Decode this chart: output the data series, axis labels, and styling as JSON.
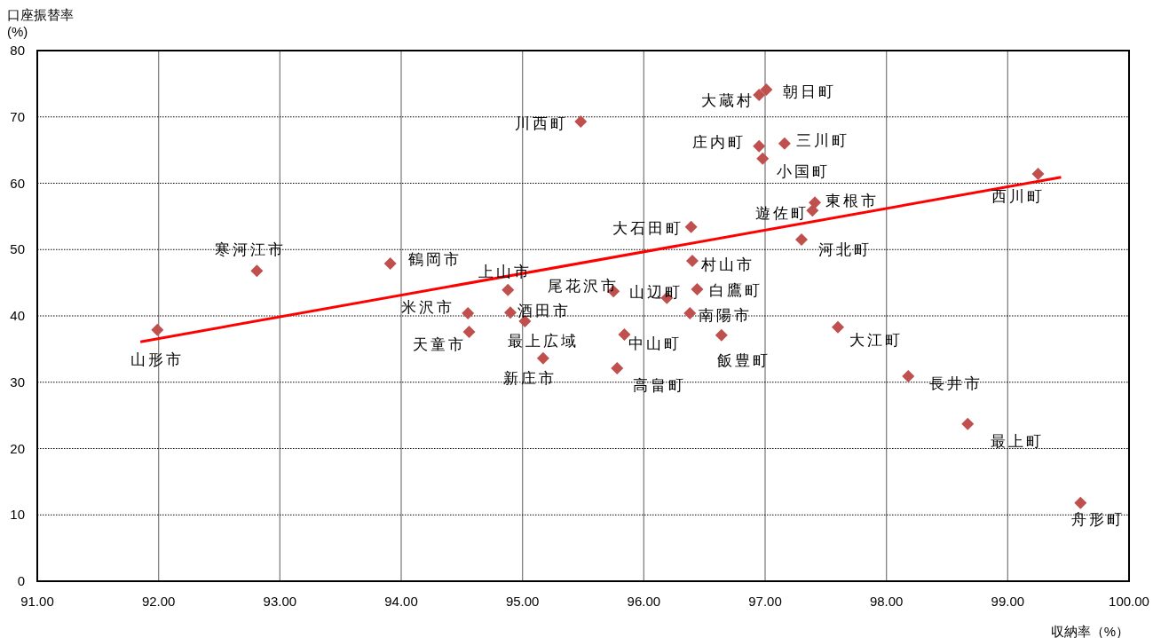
{
  "chart_data": {
    "type": "scatter",
    "xlabel": "収納率（%）",
    "ylabel": "口座振替率\n(%)",
    "xlim": [
      91,
      100
    ],
    "xticks": [
      {
        "value": 91,
        "label": "91.00"
      },
      {
        "value": 92,
        "label": "92.00"
      },
      {
        "value": 93,
        "label": "93.00"
      },
      {
        "value": 94,
        "label": "94.00"
      },
      {
        "value": 95,
        "label": "95.00"
      },
      {
        "value": 96,
        "label": "96.00"
      },
      {
        "value": 97,
        "label": "97.00"
      },
      {
        "value": 98,
        "label": "98.00"
      },
      {
        "value": 99,
        "label": "99.00"
      },
      {
        "value": 100,
        "label": "100.00"
      }
    ],
    "ylim": [
      0,
      80
    ],
    "yticks": [
      0,
      10,
      20,
      30,
      40,
      50,
      60,
      70,
      80
    ],
    "grid": true,
    "series": [
      {
        "color": "#c0504d",
        "marker": "diamond",
        "x": [
          91.99,
          92.81,
          93.91,
          94.88,
          94.55,
          94.56,
          94.9,
          95.02,
          95.17,
          95.75,
          96.19,
          95.48,
          96.39,
          96.4,
          96.44,
          96.38,
          95.84,
          95.78,
          96.64,
          96.95,
          97.01,
          96.95,
          97.16,
          96.98,
          97.41,
          97.39,
          97.3,
          99.25,
          97.6,
          98.18,
          98.67,
          99.6
        ],
        "values": [
          37.9,
          46.8,
          47.9,
          43.9,
          40.4,
          37.6,
          40.5,
          39.2,
          33.6,
          43.7,
          42.7,
          69.3,
          53.4,
          48.3,
          44.0,
          40.4,
          37.2,
          32.1,
          37.1,
          73.3,
          74.1,
          65.6,
          66.0,
          63.7,
          57.1,
          55.9,
          51.5,
          61.4,
          38.3,
          30.9,
          23.7,
          11.8
        ]
      },
      {
        "type": "line",
        "color": "#ff0000",
        "line_style": "solid",
        "x": [
          91.85,
          99.44
        ],
        "values": [
          36.1,
          60.9
        ]
      }
    ],
    "annotations": [
      {
        "text": "山形市",
        "x": 91.99,
        "y": 37.9
      },
      {
        "text": "寒河江市",
        "x": 92.81,
        "y": 46.8
      },
      {
        "text": "鶴岡市",
        "x": 93.91,
        "y": 47.9
      },
      {
        "text": "上山市",
        "x": 94.88,
        "y": 43.9
      },
      {
        "text": "米沢市",
        "x": 94.55,
        "y": 40.4
      },
      {
        "text": "天童市",
        "x": 94.56,
        "y": 37.6
      },
      {
        "text": "酒田市",
        "x": 94.9,
        "y": 40.5
      },
      {
        "text": "最上広域",
        "x": 95.02,
        "y": 39.2
      },
      {
        "text": "新庄市",
        "x": 95.17,
        "y": 33.6
      },
      {
        "text": "尾花沢市",
        "x": 95.75,
        "y": 43.7
      },
      {
        "text": "山辺町",
        "x": 96.19,
        "y": 42.7
      },
      {
        "text": "川西町",
        "x": 95.48,
        "y": 69.3
      },
      {
        "text": "大石田町",
        "x": 96.39,
        "y": 53.4
      },
      {
        "text": "村山市",
        "x": 96.4,
        "y": 48.3
      },
      {
        "text": "白鷹町",
        "x": 96.44,
        "y": 44.0
      },
      {
        "text": "南陽市",
        "x": 96.38,
        "y": 40.4
      },
      {
        "text": "中山町",
        "x": 95.84,
        "y": 37.2
      },
      {
        "text": "高畠町",
        "x": 95.78,
        "y": 32.1
      },
      {
        "text": "飯豊町",
        "x": 96.64,
        "y": 37.1
      },
      {
        "text": "大蔵村",
        "x": 96.95,
        "y": 73.3
      },
      {
        "text": "朝日町",
        "x": 97.01,
        "y": 74.1
      },
      {
        "text": "庄内町",
        "x": 96.95,
        "y": 65.6
      },
      {
        "text": "三川町",
        "x": 97.16,
        "y": 66.0
      },
      {
        "text": "小国町",
        "x": 96.98,
        "y": 63.7
      },
      {
        "text": "東根市",
        "x": 97.41,
        "y": 57.1
      },
      {
        "text": "遊佐町",
        "x": 97.39,
        "y": 55.9
      },
      {
        "text": "河北町",
        "x": 97.3,
        "y": 51.5
      },
      {
        "text": "西川町",
        "x": 99.25,
        "y": 61.4
      },
      {
        "text": "大江町",
        "x": 97.6,
        "y": 38.3
      },
      {
        "text": "長井市",
        "x": 98.18,
        "y": 30.9
      },
      {
        "text": "最上町",
        "x": 98.67,
        "y": 23.7
      },
      {
        "text": "舟形町",
        "x": 99.6,
        "y": 11.8
      }
    ]
  }
}
